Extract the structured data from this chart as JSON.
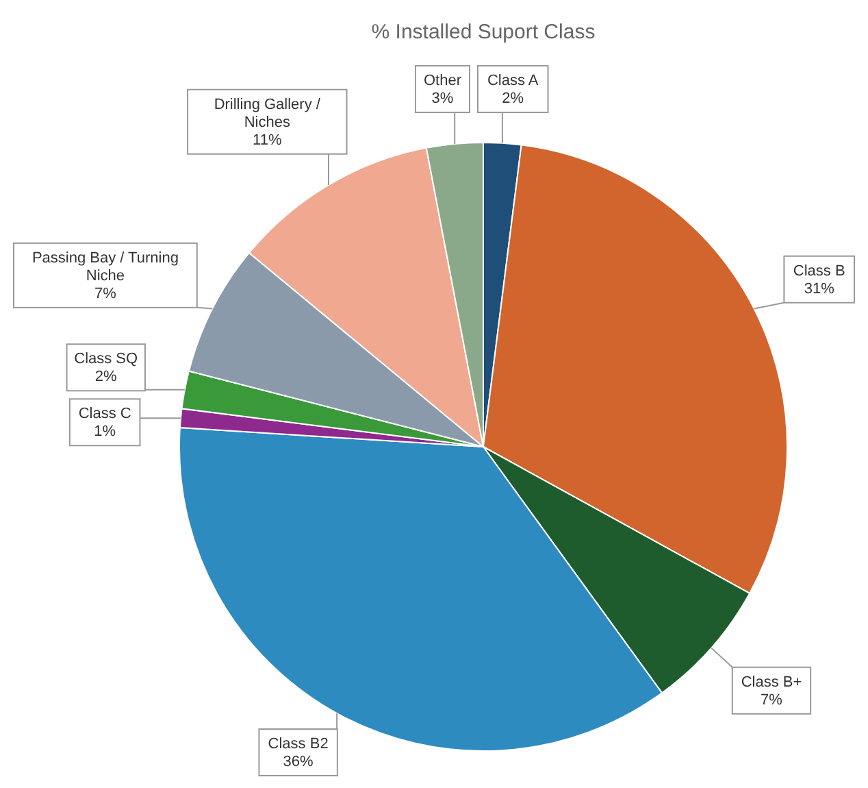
{
  "chart_data": {
    "type": "pie",
    "title": "% Installed Suport Class",
    "categories": [
      "Class A",
      "Class B",
      "Class B+",
      "Class B2",
      "Class C",
      "Class SQ",
      "Passing Bay / Turning Niche",
      "Drilling Gallery / Niches",
      "Other"
    ],
    "values": [
      2,
      31,
      7,
      36,
      1,
      2,
      7,
      11,
      3
    ],
    "colors": [
      "#1f4e79",
      "#d2652d",
      "#1e5c2e",
      "#2e8bc0",
      "#8e2a8e",
      "#3a9a3a",
      "#8a9aaa",
      "#f0a890",
      "#8aa88a"
    ],
    "value_labels": [
      "2%",
      "31%",
      "7%",
      "36%",
      "1%",
      "2%",
      "7%",
      "11%",
      "3%"
    ]
  }
}
